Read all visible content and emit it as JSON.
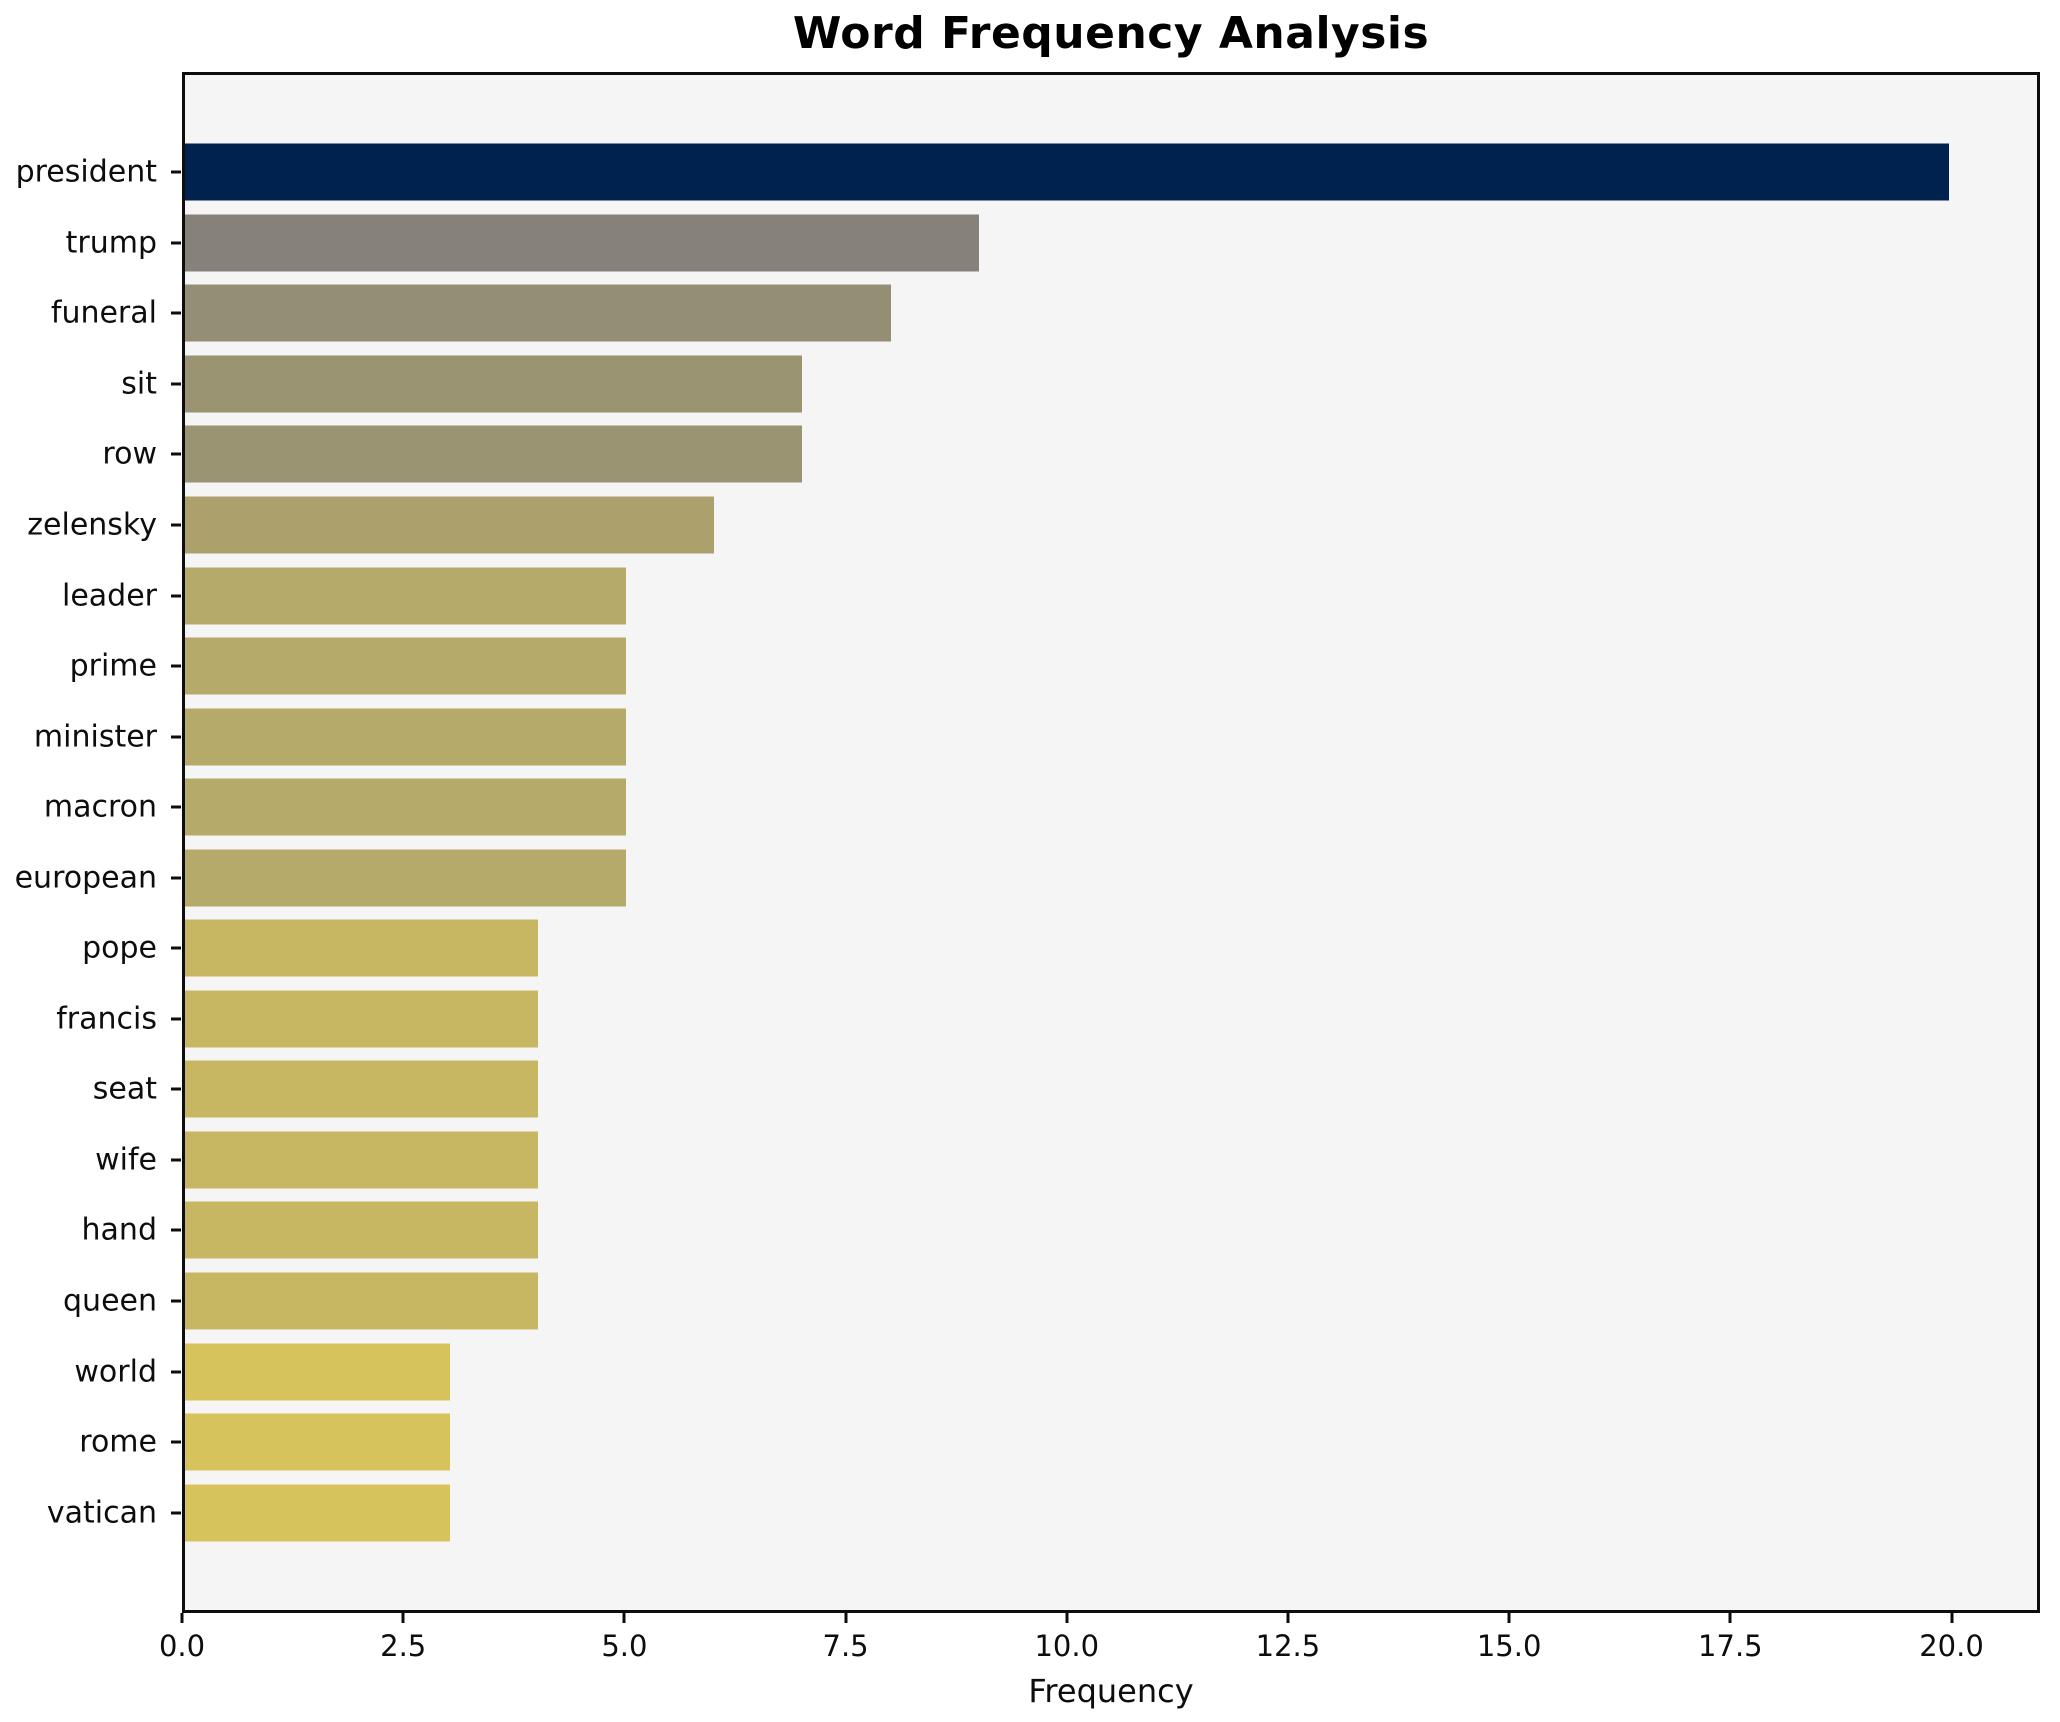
{
  "chart_data": {
    "type": "bar",
    "orientation": "horizontal",
    "title": "Word Frequency Analysis",
    "xlabel": "Frequency",
    "ylabel": "",
    "grid": false,
    "legend": null,
    "plot_background": "#f5f5f5",
    "figure_background": "#ffffff",
    "spine_color": "#0d0d0d",
    "xlim": [
      0,
      21
    ],
    "xticks": [
      0.0,
      2.5,
      5.0,
      7.5,
      10.0,
      12.5,
      15.0,
      17.5,
      20.0
    ],
    "xtick_labels": [
      "0.0",
      "2.5",
      "5.0",
      "7.5",
      "10.0",
      "12.5",
      "15.0",
      "17.5",
      "20.0"
    ],
    "categories": [
      "president",
      "trump",
      "funeral",
      "sit",
      "row",
      "zelensky",
      "leader",
      "prime",
      "minister",
      "macron",
      "european",
      "pope",
      "francis",
      "seat",
      "wife",
      "hand",
      "queen",
      "world",
      "rome",
      "vatican"
    ],
    "values": [
      20,
      9,
      8,
      7,
      7,
      6,
      5,
      5,
      5,
      5,
      5,
      4,
      4,
      4,
      4,
      4,
      4,
      3,
      3,
      3
    ],
    "bar_colors": [
      "#00224e",
      "#86827a",
      "#948e74",
      "#9b9472",
      "#9b9472",
      "#aca16d",
      "#b5aa69",
      "#b5aa69",
      "#b5aa69",
      "#b5aa69",
      "#b5aa69",
      "#c7b763",
      "#c7b763",
      "#c7b763",
      "#c7b763",
      "#c7b763",
      "#c7b763",
      "#d6c35c",
      "#d6c35c",
      "#d6c35c"
    ]
  }
}
